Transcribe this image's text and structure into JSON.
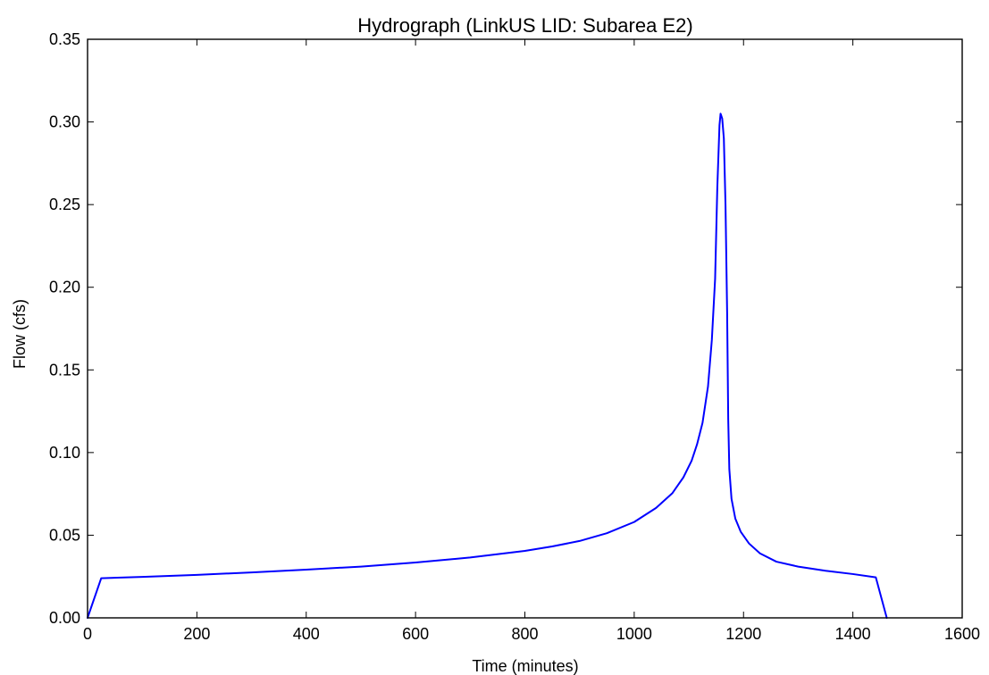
{
  "chart_data": {
    "type": "line",
    "title": "Hydrograph (LinkUS LID: Subarea E2)",
    "xlabel": "Time (minutes)",
    "ylabel": "Flow (cfs)",
    "xlim": [
      0,
      1600
    ],
    "ylim": [
      0,
      0.35
    ],
    "x_ticks": [
      0,
      200,
      400,
      600,
      800,
      1000,
      1200,
      1400,
      1600
    ],
    "x_tick_labels": [
      "0",
      "200",
      "400",
      "600",
      "800",
      "1000",
      "1200",
      "1400",
      "1600"
    ],
    "y_ticks": [
      0,
      0.05,
      0.1,
      0.15,
      0.2,
      0.25,
      0.3,
      0.35
    ],
    "y_tick_labels": [
      "0.00",
      "0.05",
      "0.10",
      "0.15",
      "0.20",
      "0.25",
      "0.30",
      "0.35"
    ],
    "grid": false,
    "legend": "none",
    "colors": {
      "series": "#0000ff",
      "axes": "#000000",
      "background": "#ffffff"
    },
    "series": [
      {
        "x": [
          0,
          25,
          100,
          200,
          300,
          400,
          500,
          600,
          700,
          800,
          850,
          900,
          950,
          1000,
          1040,
          1070,
          1090,
          1105,
          1115,
          1125,
          1135,
          1142,
          1148,
          1152,
          1156,
          1158,
          1161,
          1164,
          1167,
          1170,
          1172,
          1174,
          1178,
          1185,
          1195,
          1210,
          1230,
          1260,
          1300,
          1350,
          1400,
          1442,
          1462
        ],
        "y": [
          0.0,
          0.024,
          0.0248,
          0.026,
          0.0275,
          0.0292,
          0.031,
          0.0335,
          0.0365,
          0.0405,
          0.0432,
          0.0465,
          0.0512,
          0.058,
          0.0665,
          0.0755,
          0.085,
          0.095,
          0.105,
          0.118,
          0.14,
          0.168,
          0.205,
          0.26,
          0.298,
          0.305,
          0.302,
          0.29,
          0.25,
          0.185,
          0.12,
          0.09,
          0.072,
          0.06,
          0.052,
          0.045,
          0.039,
          0.034,
          0.031,
          0.0285,
          0.0265,
          0.0245,
          0.0
        ]
      }
    ]
  }
}
